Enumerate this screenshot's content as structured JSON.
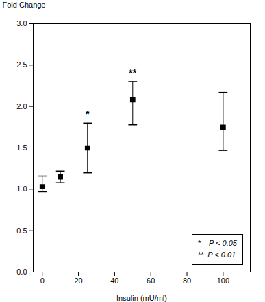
{
  "chart_data": {
    "type": "errorbar",
    "x": [
      0,
      10,
      25,
      50,
      100
    ],
    "values": [
      1.03,
      1.15,
      1.5,
      2.08,
      1.75
    ],
    "yerr_lower": [
      0.06,
      0.07,
      0.3,
      0.3,
      0.28
    ],
    "yerr_upper": [
      0.13,
      0.07,
      0.3,
      0.22,
      0.42
    ],
    "color": "#000000",
    "marker": "square",
    "xlabel": "Insulin (mU/ml)",
    "ylabel": "Fold Change",
    "xlim": [
      -5,
      115
    ],
    "ylim": [
      0,
      3
    ],
    "xticks": [
      0,
      20,
      40,
      60,
      80,
      100
    ],
    "yticks": [
      {
        "value": 0,
        "label": "0.0"
      },
      {
        "value": 0.5,
        "label": "0.5"
      },
      {
        "value": 1,
        "label": "1.0"
      },
      {
        "value": 1.5,
        "label": "1.5"
      },
      {
        "value": 2,
        "label": "2.0"
      },
      {
        "value": 2.5,
        "label": "2.5"
      },
      {
        "value": 3,
        "label": "3.0"
      }
    ],
    "grid": false,
    "annotations": [
      {
        "x": 25,
        "text": "*"
      },
      {
        "x": 50,
        "text": "**"
      }
    ],
    "legend": "lower right",
    "legend_lines": [
      "*    P < 0.05",
      "**  P < 0.01"
    ]
  }
}
